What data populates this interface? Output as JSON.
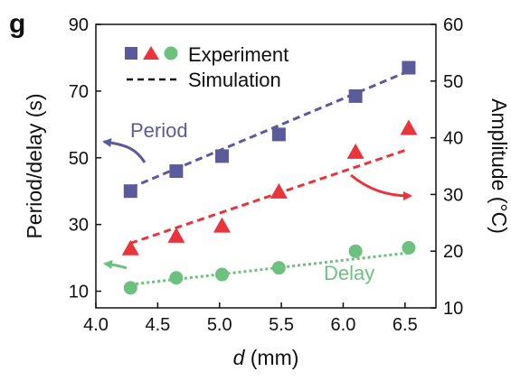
{
  "panel_label": "g",
  "chart_data": {
    "type": "scatter",
    "xlabel_italic": "d",
    "xlabel_unit": " (mm)",
    "ylabel_left": "Period/delay (s)",
    "ylabel_right": "Amplitude (°C)",
    "xlim": [
      4.0,
      6.75
    ],
    "ylim_left": [
      5,
      90
    ],
    "ylim_right": [
      10,
      60
    ],
    "xticks": [
      4.0,
      4.5,
      5.0,
      5.5,
      6.0,
      6.5
    ],
    "xtick_labels": [
      "4.0",
      "4.5",
      "5.0",
      "5.5",
      "6.0",
      "6.5"
    ],
    "yticks_left": [
      10,
      30,
      50,
      70,
      90
    ],
    "yticks_left_labels": [
      "10",
      "30",
      "50",
      "70",
      "90"
    ],
    "yticks_right": [
      10,
      20,
      30,
      40,
      50,
      60
    ],
    "yticks_right_labels": [
      "10",
      "20",
      "30",
      "40",
      "50",
      "60"
    ],
    "grid": false,
    "legend": {
      "position": "top-left",
      "experiment_label": "Experiment",
      "simulation_label": "Simulation"
    },
    "annotations": {
      "period_label": "Period",
      "delay_label": "Delay"
    },
    "series": [
      {
        "key": "period",
        "axis": "left",
        "marker": "square",
        "color": "#5b5b9c",
        "points": [
          {
            "x": 4.28,
            "y": 40
          },
          {
            "x": 4.65,
            "y": 46
          },
          {
            "x": 5.02,
            "y": 50.5
          },
          {
            "x": 5.48,
            "y": 57
          },
          {
            "x": 6.1,
            "y": 68.5
          },
          {
            "x": 6.53,
            "y": 77
          }
        ],
        "fit": [
          {
            "x": 4.28,
            "y": 41
          },
          {
            "x": 6.53,
            "y": 76
          }
        ],
        "fit_style": "dashed"
      },
      {
        "key": "amplitude",
        "axis": "right",
        "marker": "triangle",
        "color": "#e8343a",
        "points": [
          {
            "x": 4.28,
            "y": 20.4
          },
          {
            "x": 4.65,
            "y": 22.6
          },
          {
            "x": 5.02,
            "y": 24.4
          },
          {
            "x": 5.48,
            "y": 30.4
          },
          {
            "x": 6.1,
            "y": 37.4
          },
          {
            "x": 6.53,
            "y": 41.6
          }
        ],
        "fit": [
          {
            "x": 4.28,
            "y": 21.4
          },
          {
            "x": 6.53,
            "y": 38.0
          }
        ],
        "fit_style": "dashed"
      },
      {
        "key": "delay",
        "axis": "left",
        "marker": "circle",
        "color": "#6cc17e",
        "points": [
          {
            "x": 4.28,
            "y": 11
          },
          {
            "x": 4.65,
            "y": 14
          },
          {
            "x": 5.02,
            "y": 15
          },
          {
            "x": 5.48,
            "y": 17
          },
          {
            "x": 6.1,
            "y": 22
          },
          {
            "x": 6.53,
            "y": 23
          }
        ],
        "fit": [
          {
            "x": 4.28,
            "y": 12
          },
          {
            "x": 6.53,
            "y": 21.5
          }
        ],
        "fit_style": "dotted"
      }
    ],
    "colors": {
      "axis": "#111111",
      "period": "#5b5b9c",
      "amplitude": "#e8343a",
      "delay": "#6cc17e"
    }
  }
}
